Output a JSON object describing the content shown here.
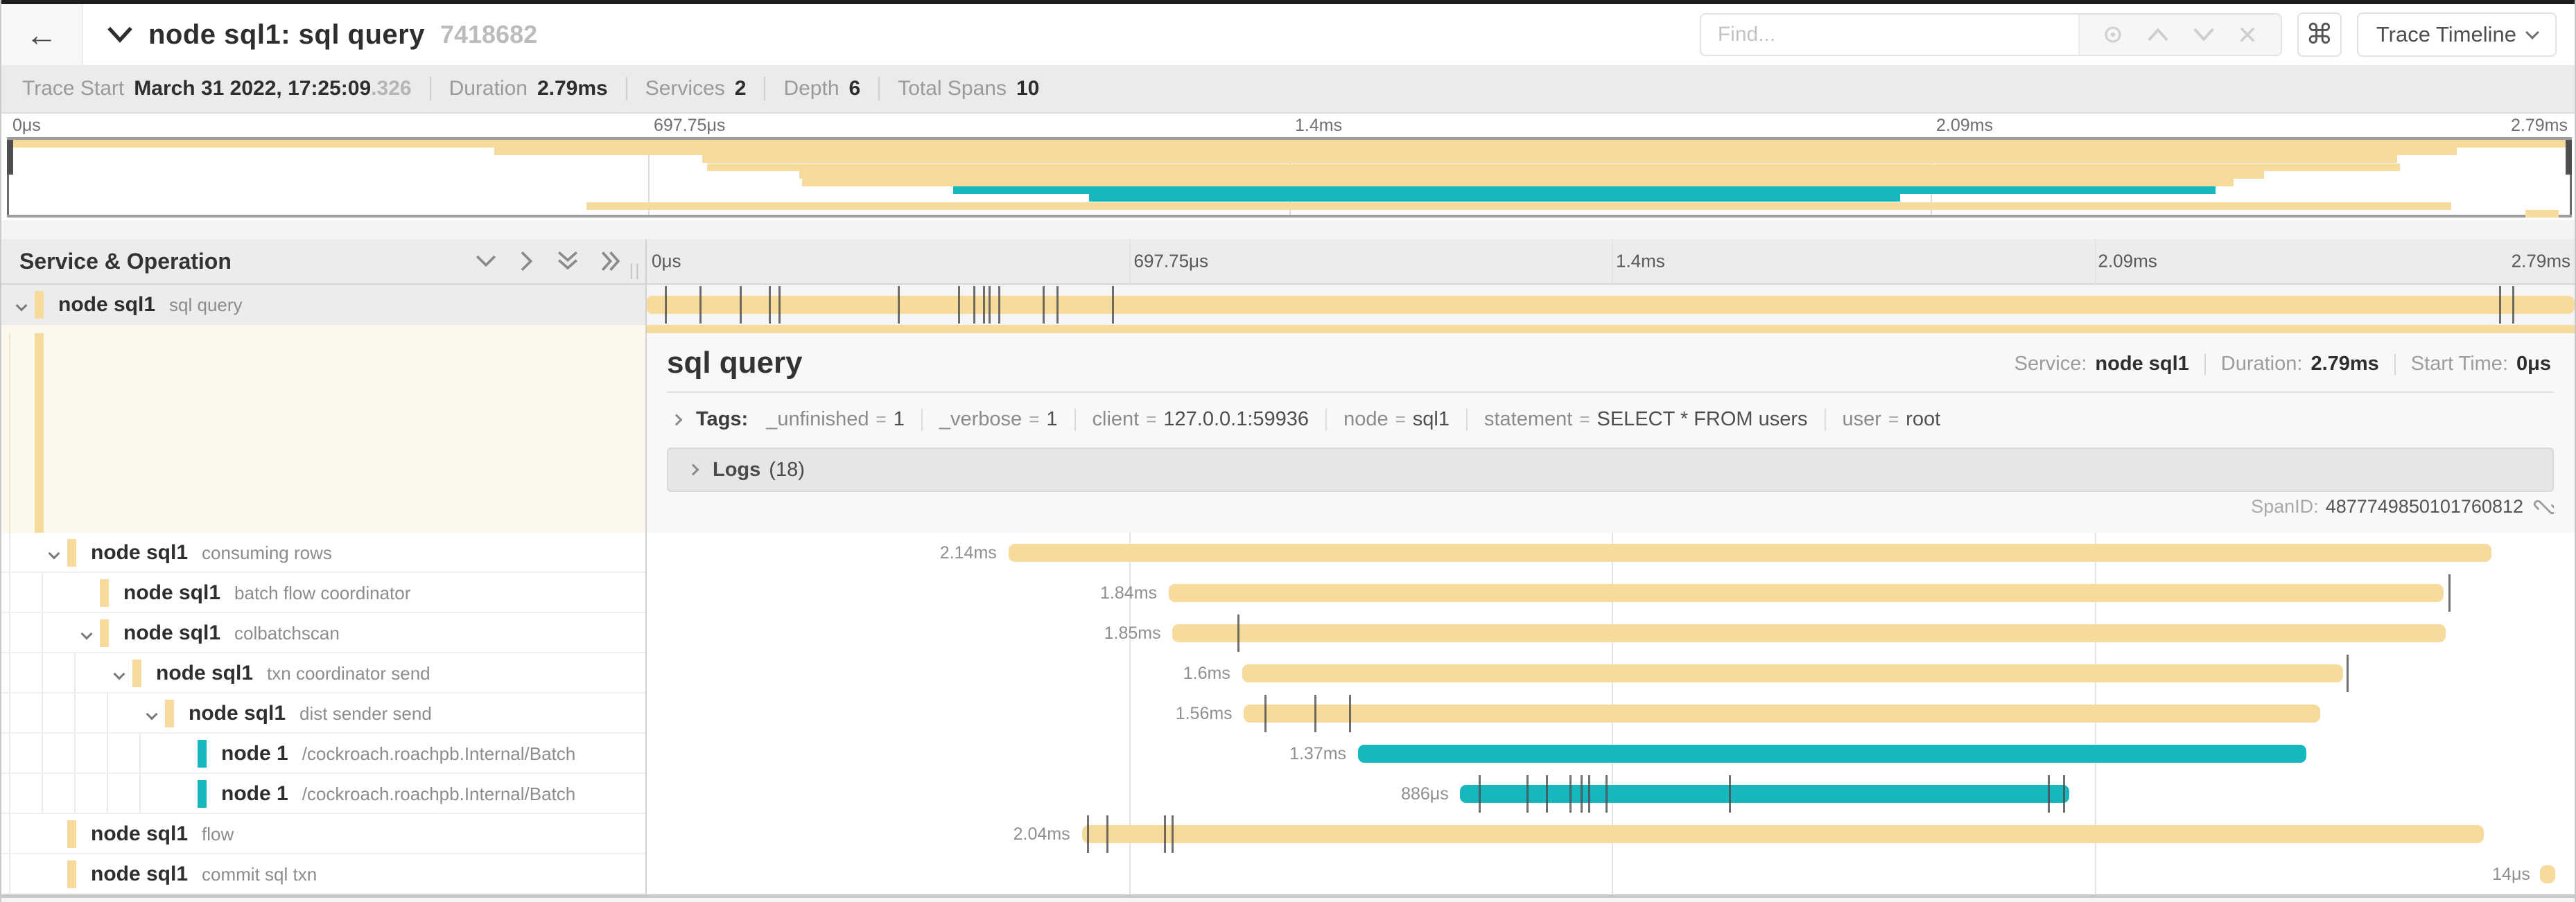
{
  "colors": {
    "tan": "#f7db9c",
    "teal": "#16b8be",
    "tick": "#4c4c4c"
  },
  "header": {
    "back_icon": "←",
    "title": "node sql1: sql query",
    "trace_id": "7418682",
    "find_placeholder": "Find...",
    "shortcut_icon": "⌘",
    "view_selector_label": "Trace Timeline"
  },
  "summary": {
    "items": [
      {
        "label": "Trace Start",
        "value": "March 31 2022, 17:25:09",
        "suffix": ".326"
      },
      {
        "label": "Duration",
        "value": "2.79ms",
        "suffix": ""
      },
      {
        "label": "Services",
        "value": "2",
        "suffix": ""
      },
      {
        "label": "Depth",
        "value": "6",
        "suffix": ""
      },
      {
        "label": "Total Spans",
        "value": "10",
        "suffix": ""
      }
    ]
  },
  "ruler_ticks": [
    {
      "label": "0μs",
      "f": 0
    },
    {
      "label": "697.75μs",
      "f": 0.25
    },
    {
      "label": "1.4ms",
      "f": 0.5
    },
    {
      "label": "2.09ms",
      "f": 0.75
    },
    {
      "label": "2.79ms",
      "f": 1
    }
  ],
  "minimap": {
    "rows": [
      {
        "start": 0.0,
        "end": 1.0,
        "color": "tan"
      },
      {
        "start": 0.19,
        "end": 0.955,
        "color": "tan"
      },
      {
        "start": 0.271,
        "end": 0.932,
        "color": "tan"
      },
      {
        "start": 0.273,
        "end": 0.933,
        "color": "tan"
      },
      {
        "start": 0.309,
        "end": 0.88,
        "color": "tan"
      },
      {
        "start": 0.31,
        "end": 0.868,
        "color": "tan"
      },
      {
        "start": 0.369,
        "end": 0.861,
        "color": "teal"
      },
      {
        "start": 0.422,
        "end": 0.738,
        "color": "teal"
      },
      {
        "start": 0.226,
        "end": 0.953,
        "color": "tan"
      },
      {
        "start": 0.982,
        "end": 0.995,
        "color": "tan"
      }
    ]
  },
  "grid": {
    "left_header": "Service & Operation"
  },
  "spans": [
    {
      "service": "node sql1",
      "op": "sql query",
      "depth": 0,
      "color": "tan",
      "chevron": true,
      "selected": true,
      "label": "",
      "bar": [
        0.0,
        1.0
      ],
      "ticks": [
        0.01,
        0.028,
        0.049,
        0.064,
        0.069,
        0.131,
        0.162,
        0.17,
        0.175,
        0.178,
        0.183,
        0.206,
        0.213,
        0.242,
        0.961,
        0.968
      ]
    },
    {
      "service": "node sql1",
      "op": "consuming rows",
      "depth": 1,
      "color": "tan",
      "chevron": true,
      "selected": false,
      "label": "2.14ms",
      "bar": [
        0.188,
        0.957
      ],
      "ticks": []
    },
    {
      "service": "node sql1",
      "op": "batch flow coordinator",
      "depth": 2,
      "color": "tan",
      "chevron": false,
      "selected": false,
      "label": "1.84ms",
      "bar": [
        0.271,
        0.932
      ],
      "ticks": [
        0.935
      ]
    },
    {
      "service": "node sql1",
      "op": "colbatchscan",
      "depth": 2,
      "color": "tan",
      "chevron": true,
      "selected": false,
      "label": "1.85ms",
      "bar": [
        0.273,
        0.933
      ],
      "ticks": [
        0.307
      ]
    },
    {
      "service": "node sql1",
      "op": "txn coordinator send",
      "depth": 3,
      "color": "tan",
      "chevron": true,
      "selected": false,
      "label": "1.6ms",
      "bar": [
        0.309,
        0.88
      ],
      "ticks": [
        0.882
      ]
    },
    {
      "service": "node sql1",
      "op": "dist sender send",
      "depth": 4,
      "color": "tan",
      "chevron": true,
      "selected": false,
      "label": "1.56ms",
      "bar": [
        0.31,
        0.868
      ],
      "ticks": [
        0.321,
        0.347,
        0.365
      ]
    },
    {
      "service": "node 1",
      "op": "/cockroach.roachpb.Internal/Batch",
      "depth": 5,
      "color": "teal",
      "chevron": false,
      "selected": false,
      "label": "1.37ms",
      "bar": [
        0.369,
        0.861
      ],
      "ticks": []
    },
    {
      "service": "node 1",
      "op": "/cockroach.roachpb.Internal/Batch",
      "depth": 5,
      "color": "teal",
      "chevron": false,
      "selected": false,
      "label": "886μs",
      "bar": [
        0.422,
        0.738
      ],
      "ticks": [
        0.432,
        0.457,
        0.467,
        0.479,
        0.485,
        0.489,
        0.498,
        0.562,
        0.727,
        0.735
      ]
    },
    {
      "service": "node sql1",
      "op": "flow",
      "depth": 1,
      "color": "tan",
      "chevron": false,
      "selected": false,
      "label": "2.04ms",
      "bar": [
        0.226,
        0.953
      ],
      "ticks": [
        0.229,
        0.239,
        0.269,
        0.273
      ]
    },
    {
      "service": "node sql1",
      "op": "commit sql txn",
      "depth": 1,
      "color": "tan",
      "chevron": false,
      "selected": false,
      "label": "14μs",
      "bar": [
        0.982,
        0.99
      ],
      "ticks": []
    }
  ],
  "detail": {
    "title": "sql query",
    "meta": [
      {
        "label": "Service:",
        "value": "node sql1"
      },
      {
        "label": "Duration:",
        "value": "2.79ms"
      },
      {
        "label": "Start Time:",
        "value": "0μs"
      }
    ],
    "tags_label": "Tags:",
    "tags": [
      {
        "key": "_unfinished",
        "value": "1"
      },
      {
        "key": "_verbose",
        "value": "1"
      },
      {
        "key": "client",
        "value": "127.0.0.1:59936"
      },
      {
        "key": "node",
        "value": "sql1"
      },
      {
        "key": "statement",
        "value": "SELECT * FROM users"
      },
      {
        "key": "user",
        "value": "root"
      }
    ],
    "logs_label": "Logs",
    "logs_count": "(18)",
    "spanid_label": "SpanID:",
    "spanid_value": "4877749850101760812"
  }
}
